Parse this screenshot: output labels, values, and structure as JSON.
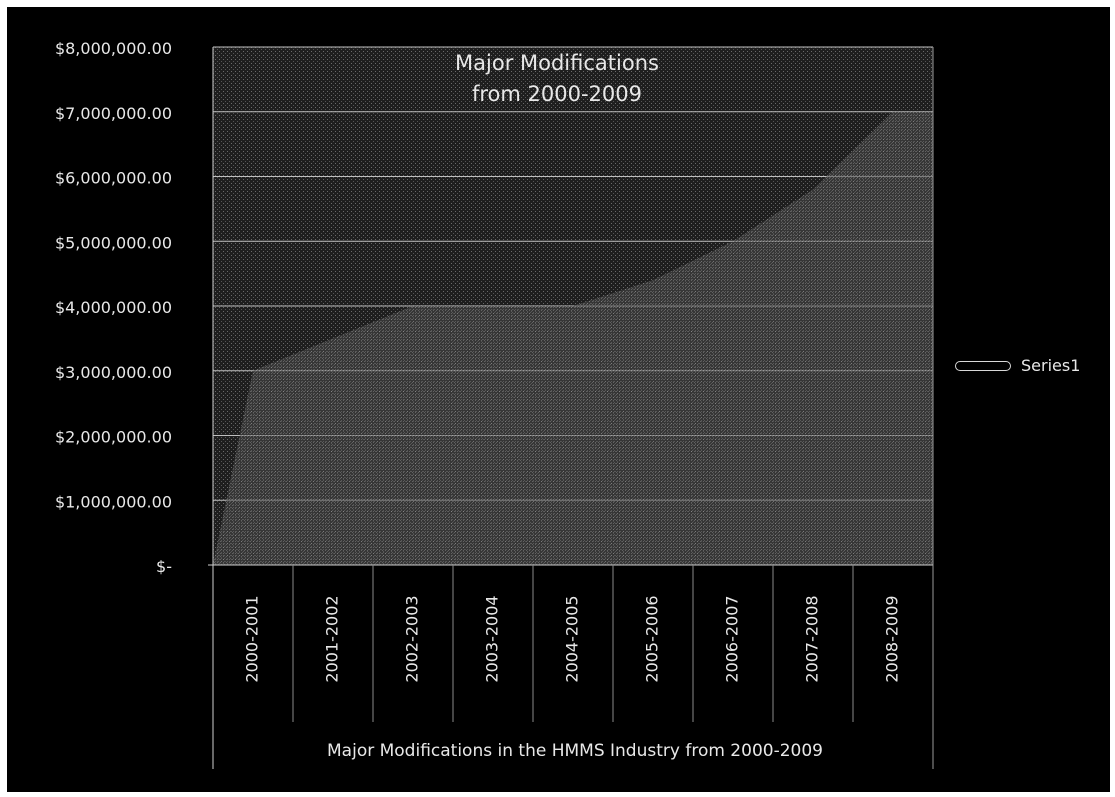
{
  "chart_data": {
    "type": "area",
    "title_lines": [
      "Major Modifications",
      "from 2000-2009"
    ],
    "xlabel": "Major Modifications in the HMMS Industry from 2000-2009",
    "ylabel": "",
    "categories": [
      "2000-2001",
      "2001-2002",
      "2002-2003",
      "2003-2004",
      "2004-2005",
      "2005-2006",
      "2006-2007",
      "2007-2008",
      "2008-2009"
    ],
    "series": [
      {
        "name": "Series1",
        "values": [
          3000000,
          3500000,
          4000000,
          4000000,
          4000000,
          4400000,
          5000000,
          5800000,
          7000000
        ]
      }
    ],
    "ylim": [
      0,
      8000000
    ],
    "yticks": [
      0,
      1000000,
      2000000,
      3000000,
      4000000,
      5000000,
      6000000,
      7000000,
      8000000
    ],
    "ytick_labels": [
      "$-",
      "$1,000,000.00",
      "$2,000,000.00",
      "$3,000,000.00",
      "$4,000,000.00",
      "$5,000,000.00",
      "$6,000,000.00",
      "$7,000,000.00",
      "$8,000,000.00"
    ],
    "grid": true,
    "legend": "right",
    "colors": {
      "background": "#000000",
      "plot_area": "#222222",
      "gridline": "#bfbfbf",
      "text": "#e8e8e8"
    }
  },
  "legend": {
    "label": "Series1"
  }
}
